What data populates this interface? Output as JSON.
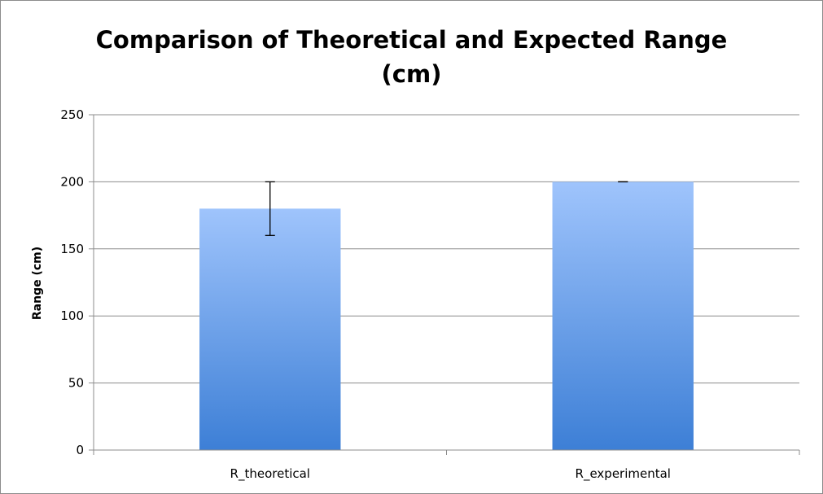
{
  "chart_data": {
    "type": "bar",
    "title_lines": [
      "Comparison of Theoretical and Expected Range",
      "(cm)"
    ],
    "xlabel": "",
    "ylabel": "Range (cm)",
    "categories": [
      "R_theoretical",
      "R_experimental"
    ],
    "values": [
      180,
      200
    ],
    "error": [
      20,
      0
    ],
    "ylim": [
      0,
      250
    ],
    "yticks": [
      0,
      50,
      100,
      150,
      200,
      250
    ],
    "grid": true,
    "legend": "none",
    "colors": {
      "bar_top": "#9fc4fc",
      "bar_bottom": "#3d7fd6",
      "grid": "#8c8c8c",
      "axis": "#8c8c8c",
      "error_bar": "#000000"
    }
  }
}
